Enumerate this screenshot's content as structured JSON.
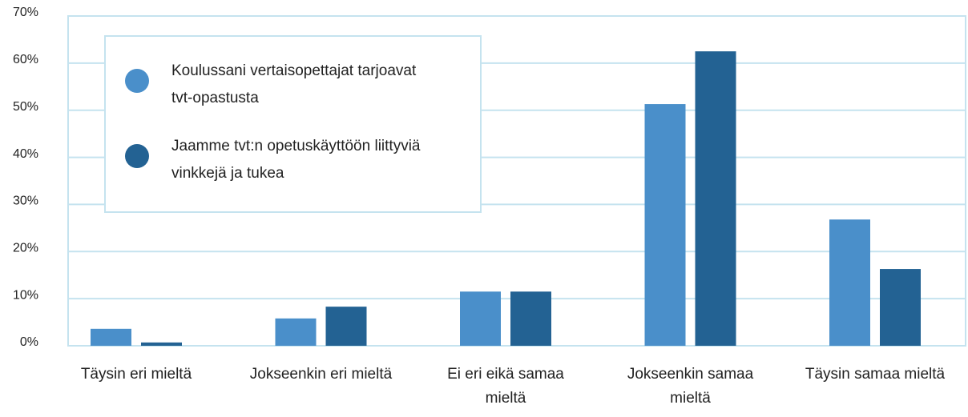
{
  "chart_data": {
    "type": "bar",
    "categories": [
      "Täysin eri mieltä",
      "Jokseenkin eri mieltä",
      "Ei eri eikä samaa mieltä",
      "Jokseenkin samaa mieltä",
      "Täysin samaa mieltä"
    ],
    "series": [
      {
        "name": "Koulussani vertaisopettajat tarjoavat tvt-opastusta",
        "color": "#4a8fca",
        "values": [
          3.6,
          5.8,
          11.5,
          51.3,
          26.8
        ]
      },
      {
        "name": "Jaamme tvt:n opetuskäyttöön liittyviä vinkkejä ja tukea",
        "color": "#236293",
        "values": [
          0.7,
          8.3,
          11.5,
          62.5,
          16.3
        ]
      }
    ],
    "ylim": [
      0,
      70
    ],
    "yticks": [
      {
        "value": 0,
        "label": "0%"
      },
      {
        "value": 10,
        "label": "10%"
      },
      {
        "value": 20,
        "label": "20%"
      },
      {
        "value": 30,
        "label": "30%"
      },
      {
        "value": 40,
        "label": "40%"
      },
      {
        "value": 50,
        "label": "50%"
      },
      {
        "value": 60,
        "label": "60%"
      },
      {
        "value": 70,
        "label": "70%"
      }
    ],
    "grid": true
  }
}
